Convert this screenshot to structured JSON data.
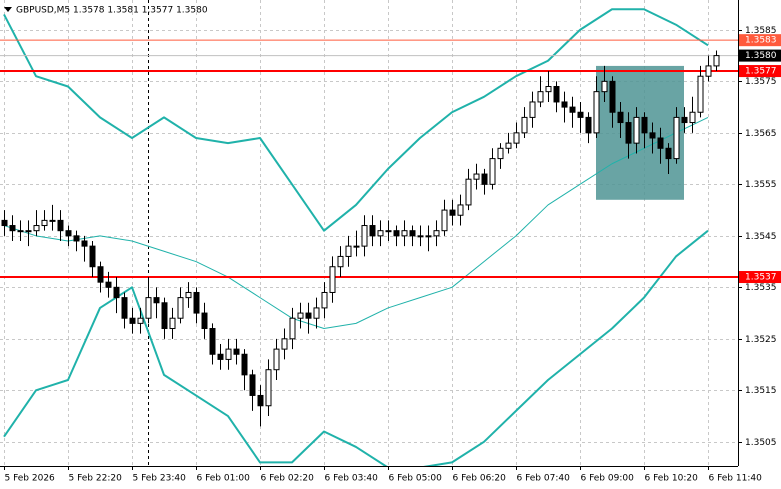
{
  "chart_data": {
    "type": "candlestick",
    "title": "GBPUSD,M5 1.3578 1.3581 1.3577 1.3580",
    "open": [
      1.3548,
      1.3547,
      1.3546,
      1.3546,
      1.3546,
      1.3547,
      1.3548,
      1.3548,
      1.3546,
      1.3545,
      1.3544,
      1.3543,
      1.3539,
      1.3536,
      1.3535,
      1.3533,
      1.3529,
      1.3528,
      1.3529,
      1.3533,
      1.3532,
      1.3527,
      1.3529,
      1.3533,
      1.3534,
      1.353,
      1.3527,
      1.3522,
      1.3521,
      1.3523,
      1.3522,
      1.3518,
      1.3514,
      1.3512,
      1.3519,
      1.3523,
      1.3525,
      1.3529,
      1.353,
      1.3529,
      1.3531,
      1.3534,
      1.3539,
      1.3541,
      1.3543,
      1.3543,
      1.3547,
      1.3545,
      1.3546,
      1.3546,
      1.3545,
      1.3546,
      1.3545,
      1.3545,
      1.3545,
      1.3546,
      1.355,
      1.3549,
      1.3551,
      1.3556,
      1.3557,
      1.3555,
      1.356,
      1.3562,
      1.3563,
      1.3565,
      1.3568,
      1.3571,
      1.3573,
      1.3574,
      1.3571,
      1.357,
      1.3569,
      1.3568,
      1.3565,
      1.3573,
      1.3575,
      1.3569,
      1.3567,
      1.3563,
      1.3568,
      1.3565,
      1.3564,
      1.3562,
      1.356,
      1.3568,
      1.3567,
      1.3569,
      1.3576,
      1.3578
    ],
    "high": [
      1.355,
      1.3549,
      1.3548,
      1.3548,
      1.355,
      1.355,
      1.3551,
      1.355,
      1.3547,
      1.3546,
      1.3545,
      1.3544,
      1.354,
      1.3538,
      1.3537,
      1.3534,
      1.3531,
      1.3531,
      1.3537,
      1.3535,
      1.3533,
      1.3531,
      1.3535,
      1.3536,
      1.3535,
      1.3532,
      1.3528,
      1.3524,
      1.3525,
      1.3525,
      1.3523,
      1.3519,
      1.3516,
      1.3521,
      1.3525,
      1.3527,
      1.3531,
      1.3532,
      1.3532,
      1.3533,
      1.3536,
      1.3541,
      1.3543,
      1.3545,
      1.3546,
      1.3549,
      1.3549,
      1.3548,
      1.3548,
      1.3547,
      1.3548,
      1.3547,
      1.3547,
      1.3547,
      1.3548,
      1.3552,
      1.3552,
      1.3553,
      1.3558,
      1.3559,
      1.3558,
      1.3562,
      1.3563,
      1.3565,
      1.3567,
      1.357,
      1.3573,
      1.3576,
      1.3577,
      1.3575,
      1.3573,
      1.3572,
      1.3571,
      1.3569,
      1.3576,
      1.3578,
      1.3576,
      1.3571,
      1.3569,
      1.357,
      1.3569,
      1.3567,
      1.3566,
      1.3563,
      1.357,
      1.357,
      1.3572,
      1.3578,
      1.358,
      1.3581
    ],
    "low": [
      1.3545,
      1.3544,
      1.3544,
      1.3543,
      1.3545,
      1.3546,
      1.3546,
      1.3544,
      1.3543,
      1.3542,
      1.354,
      1.3537,
      1.3534,
      1.3533,
      1.353,
      1.3527,
      1.3526,
      1.3526,
      1.3528,
      1.3529,
      1.3525,
      1.3525,
      1.3528,
      1.3531,
      1.3528,
      1.3525,
      1.352,
      1.3519,
      1.3519,
      1.352,
      1.3515,
      1.3511,
      1.3508,
      1.351,
      1.3517,
      1.3521,
      1.3523,
      1.3527,
      1.3526,
      1.3527,
      1.3529,
      1.3532,
      1.3537,
      1.3539,
      1.3541,
      1.3541,
      1.3543,
      1.3543,
      1.3544,
      1.3543,
      1.3543,
      1.3543,
      1.3543,
      1.3542,
      1.3543,
      1.3545,
      1.3547,
      1.3547,
      1.355,
      1.3554,
      1.3553,
      1.3554,
      1.3558,
      1.3561,
      1.3562,
      1.3564,
      1.3566,
      1.357,
      1.3571,
      1.3569,
      1.3567,
      1.3566,
      1.3565,
      1.3563,
      1.3564,
      1.3571,
      1.3566,
      1.3564,
      1.356,
      1.3561,
      1.3562,
      1.3561,
      1.3559,
      1.3557,
      1.3559,
      1.3565,
      1.3565,
      1.3568,
      1.3575,
      1.3577
    ],
    "close": [
      1.3547,
      1.3546,
      1.3546,
      1.3546,
      1.3547,
      1.3548,
      1.3548,
      1.3546,
      1.3545,
      1.3544,
      1.3543,
      1.3539,
      1.3536,
      1.3535,
      1.3533,
      1.3529,
      1.3528,
      1.3529,
      1.3533,
      1.3532,
      1.3527,
      1.3529,
      1.3533,
      1.3534,
      1.353,
      1.3527,
      1.3522,
      1.3521,
      1.3523,
      1.3522,
      1.3518,
      1.3514,
      1.3512,
      1.3519,
      1.3523,
      1.3525,
      1.3529,
      1.353,
      1.3529,
      1.3531,
      1.3534,
      1.3539,
      1.3541,
      1.3543,
      1.3543,
      1.3547,
      1.3545,
      1.3546,
      1.3546,
      1.3545,
      1.3546,
      1.3545,
      1.3545,
      1.3545,
      1.3546,
      1.355,
      1.3549,
      1.3551,
      1.3556,
      1.3557,
      1.3555,
      1.356,
      1.3562,
      1.3563,
      1.3565,
      1.3568,
      1.3571,
      1.3573,
      1.3574,
      1.3571,
      1.357,
      1.3569,
      1.3568,
      1.3565,
      1.3573,
      1.3575,
      1.3569,
      1.3567,
      1.3563,
      1.3568,
      1.3565,
      1.3564,
      1.3562,
      1.356,
      1.3568,
      1.3567,
      1.3569,
      1.3576,
      1.3578,
      1.358
    ],
    "candle_color": "#000000",
    "bands": {
      "x": [
        0,
        4,
        8,
        12,
        16,
        20,
        24,
        28,
        32,
        36,
        40,
        44,
        48,
        52,
        56,
        60,
        64,
        68,
        72,
        76,
        80,
        84,
        88
      ],
      "upper": [
        1.3588,
        1.3576,
        1.3574,
        1.3568,
        1.3564,
        1.3568,
        1.3564,
        1.3563,
        1.3564,
        1.3555,
        1.3546,
        1.3551,
        1.3558,
        1.3564,
        1.3569,
        1.3572,
        1.3576,
        1.3579,
        1.3585,
        1.3589,
        1.3589,
        1.3586,
        1.3582
      ],
      "middle": [
        1.3547,
        1.3545,
        1.3544,
        1.3545,
        1.3544,
        1.3542,
        1.354,
        1.3537,
        1.3533,
        1.3529,
        1.3527,
        1.3528,
        1.3531,
        1.3533,
        1.3535,
        1.354,
        1.3545,
        1.3551,
        1.3555,
        1.3559,
        1.3562,
        1.3565,
        1.3568
      ],
      "lower": [
        1.3506,
        1.3515,
        1.3517,
        1.3531,
        1.3535,
        1.3518,
        1.3514,
        1.351,
        1.3501,
        1.3501,
        1.3507,
        1.3504,
        1.35,
        1.35,
        1.3501,
        1.3505,
        1.3511,
        1.3517,
        1.3522,
        1.3527,
        1.3533,
        1.3541,
        1.3546
      ],
      "color": "#20b2aa"
    },
    "levels": [
      {
        "value": 1.3583,
        "color": "#ff5a3c"
      },
      {
        "value": 1.3577,
        "color": "#ff0000"
      },
      {
        "value": 1.3537,
        "color": "#ff0000"
      }
    ],
    "current_price": {
      "value": 1.358,
      "label": "1.3580"
    },
    "zone": {
      "x": [
        74,
        85
      ],
      "y": [
        1.3552,
        1.3578
      ],
      "color": "#4f9494"
    },
    "vline": 18,
    "xlim": [
      -0.5,
      91.75
    ],
    "ylim": [
      1.35003,
      1.35908
    ],
    "yticks": [
      1.3505,
      1.3515,
      1.3525,
      1.3535,
      1.3545,
      1.3555,
      1.3565,
      1.3575,
      1.3585
    ],
    "xticks": [
      {
        "value": 0,
        "label": "5 Feb 2026"
      },
      {
        "value": 8,
        "label": "5 Feb 22:20"
      },
      {
        "value": 16,
        "label": "5 Feb 23:40"
      },
      {
        "value": 24,
        "label": "6 Feb 01:00"
      },
      {
        "value": 32,
        "label": "6 Feb 02:20"
      },
      {
        "value": 40,
        "label": "6 Feb 03:40"
      },
      {
        "value": 48,
        "label": "6 Feb 05:00"
      },
      {
        "value": 56,
        "label": "6 Feb 06:20"
      },
      {
        "value": 64,
        "label": "6 Feb 07:40"
      },
      {
        "value": 72,
        "label": "6 Feb 09:00"
      },
      {
        "value": 80,
        "label": "6 Feb 10:20"
      },
      {
        "value": 88,
        "label": "6 Feb 11:40"
      }
    ],
    "grid": true
  }
}
